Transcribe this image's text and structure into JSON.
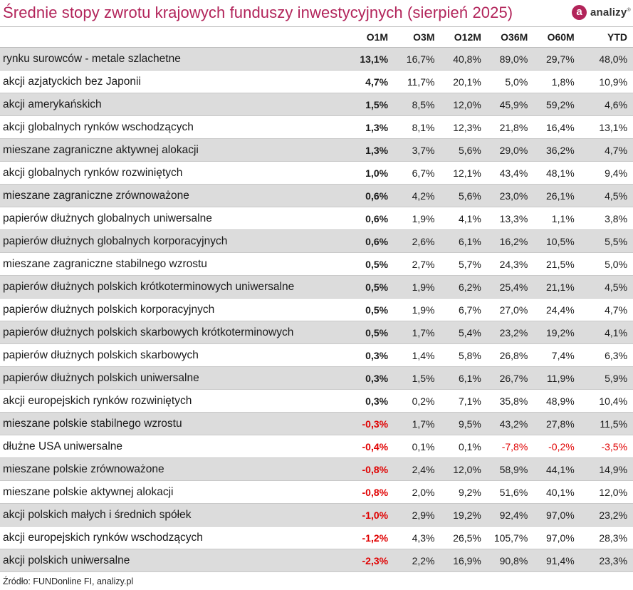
{
  "title": "Średnie stopy zwrotu krajowych funduszy inwestycyjnych (sierpień 2025)",
  "logo": {
    "glyph": "a",
    "text": "analizy",
    "mark": "®",
    "color": "#b2245a"
  },
  "columns": [
    "O1M",
    "O3M",
    "O12M",
    "O36M",
    "O60M",
    "YTD"
  ],
  "rows": [
    {
      "name": "rynku surowców - metale szlachetne",
      "values": [
        "13,1%",
        "16,7%",
        "40,8%",
        "89,0%",
        "29,7%",
        "48,0%"
      ]
    },
    {
      "name": "akcji azjatyckich bez Japonii",
      "values": [
        "4,7%",
        "11,7%",
        "20,1%",
        "5,0%",
        "1,8%",
        "10,9%"
      ]
    },
    {
      "name": "akcji amerykańskich",
      "values": [
        "1,5%",
        "8,5%",
        "12,0%",
        "45,9%",
        "59,2%",
        "4,6%"
      ]
    },
    {
      "name": "akcji globalnych rynków wschodzących",
      "values": [
        "1,3%",
        "8,1%",
        "12,3%",
        "21,8%",
        "16,4%",
        "13,1%"
      ]
    },
    {
      "name": "mieszane zagraniczne aktywnej alokacji",
      "values": [
        "1,3%",
        "3,7%",
        "5,6%",
        "29,0%",
        "36,2%",
        "4,7%"
      ]
    },
    {
      "name": "akcji globalnych rynków rozwiniętych",
      "values": [
        "1,0%",
        "6,7%",
        "12,1%",
        "43,4%",
        "48,1%",
        "9,4%"
      ]
    },
    {
      "name": "mieszane zagraniczne zrównoważone",
      "values": [
        "0,6%",
        "4,2%",
        "5,6%",
        "23,0%",
        "26,1%",
        "4,5%"
      ]
    },
    {
      "name": "papierów dłużnych globalnych uniwersalne",
      "values": [
        "0,6%",
        "1,9%",
        "4,1%",
        "13,3%",
        "1,1%",
        "3,8%"
      ]
    },
    {
      "name": "papierów dłużnych globalnych korporacyjnych",
      "values": [
        "0,6%",
        "2,6%",
        "6,1%",
        "16,2%",
        "10,5%",
        "5,5%"
      ]
    },
    {
      "name": "mieszane zagraniczne stabilnego wzrostu",
      "values": [
        "0,5%",
        "2,7%",
        "5,7%",
        "24,3%",
        "21,5%",
        "5,0%"
      ]
    },
    {
      "name": "papierów dłużnych polskich krótkoterminowych uniwersalne",
      "values": [
        "0,5%",
        "1,9%",
        "6,2%",
        "25,4%",
        "21,1%",
        "4,5%"
      ]
    },
    {
      "name": "papierów dłużnych polskich korporacyjnych",
      "values": [
        "0,5%",
        "1,9%",
        "6,7%",
        "27,0%",
        "24,4%",
        "4,7%"
      ]
    },
    {
      "name": "papierów dłużnych polskich skarbowych krótkoterminowych",
      "values": [
        "0,5%",
        "1,7%",
        "5,4%",
        "23,2%",
        "19,2%",
        "4,1%"
      ]
    },
    {
      "name": "papierów dłużnych polskich skarbowych",
      "values": [
        "0,3%",
        "1,4%",
        "5,8%",
        "26,8%",
        "7,4%",
        "6,3%"
      ]
    },
    {
      "name": "papierów dłużnych polskich uniwersalne",
      "values": [
        "0,3%",
        "1,5%",
        "6,1%",
        "26,7%",
        "11,9%",
        "5,9%"
      ]
    },
    {
      "name": "akcji europejskich rynków rozwiniętych",
      "values": [
        "0,3%",
        "0,2%",
        "7,1%",
        "35,8%",
        "48,9%",
        "10,4%"
      ]
    },
    {
      "name": "mieszane polskie stabilnego wzrostu",
      "values": [
        "-0,3%",
        "1,7%",
        "9,5%",
        "43,2%",
        "27,8%",
        "11,5%"
      ]
    },
    {
      "name": "dłużne USA uniwersalne",
      "values": [
        "-0,4%",
        "0,1%",
        "0,1%",
        "-7,8%",
        "-0,2%",
        "-3,5%"
      ]
    },
    {
      "name": "mieszane polskie zrównoważone",
      "values": [
        "-0,8%",
        "2,4%",
        "12,0%",
        "58,9%",
        "44,1%",
        "14,9%"
      ]
    },
    {
      "name": "mieszane polskie aktywnej alokacji",
      "values": [
        "-0,8%",
        "2,0%",
        "9,2%",
        "51,6%",
        "40,1%",
        "12,0%"
      ]
    },
    {
      "name": "akcji polskich małych i średnich spółek",
      "values": [
        "-1,0%",
        "2,9%",
        "19,2%",
        "92,4%",
        "97,0%",
        "23,2%"
      ]
    },
    {
      "name": "akcji europejskich rynków wschodzących",
      "values": [
        "-1,2%",
        "4,3%",
        "26,5%",
        "105,7%",
        "97,0%",
        "28,3%"
      ]
    },
    {
      "name": "akcji polskich uniwersalne",
      "values": [
        "-2,3%",
        "2,2%",
        "16,9%",
        "90,8%",
        "91,4%",
        "23,3%"
      ]
    }
  ],
  "source": "Źródło: FUNDonline FI, analizy.pl",
  "colors": {
    "accent": "#b2245a",
    "negative": "#e00000",
    "stripe": "#dcdcdc"
  }
}
